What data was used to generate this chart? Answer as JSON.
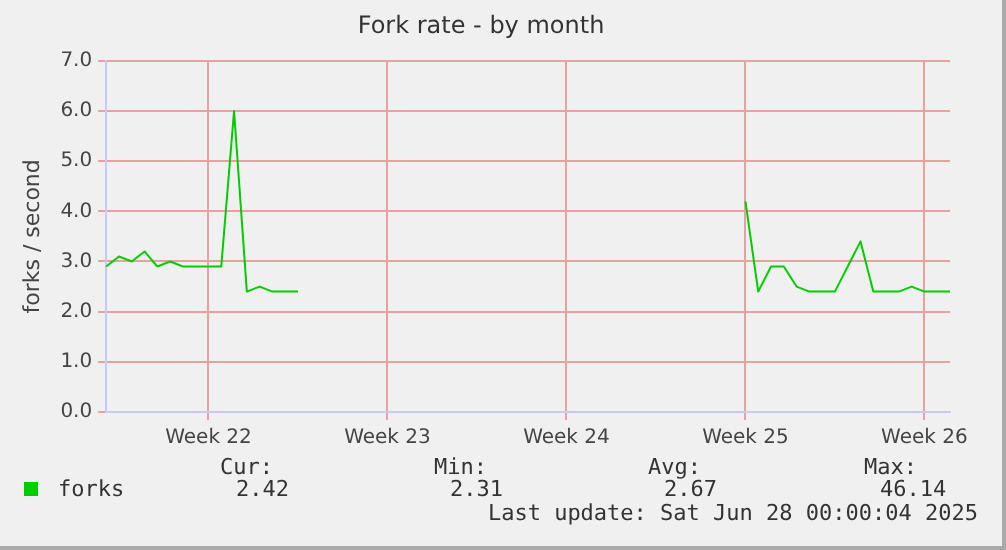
{
  "chart_data": {
    "type": "line",
    "title": "Fork rate - by month",
    "ylabel": "forks / second",
    "categories": [
      null,
      null,
      null,
      null,
      null,
      null,
      null,
      null,
      "Week 22",
      null,
      null,
      null,
      null,
      null,
      null,
      null,
      null,
      null,
      null,
      null,
      null,
      null,
      "Week 23",
      null,
      null,
      null,
      null,
      null,
      null,
      null,
      null,
      null,
      null,
      null,
      null,
      null,
      "Week 24",
      null,
      null,
      null,
      null,
      null,
      null,
      null,
      null,
      null,
      null,
      null,
      null,
      null,
      "Week 25",
      null,
      null,
      null,
      null,
      null,
      null,
      null,
      null,
      null,
      null,
      null,
      null,
      null,
      "Week 26",
      null,
      null
    ],
    "ylim": [
      0,
      7
    ],
    "yticks": [
      {
        "value": 0,
        "label": "0.0"
      },
      {
        "value": 1,
        "label": "1.0"
      },
      {
        "value": 2,
        "label": "2.0"
      },
      {
        "value": 3,
        "label": "3.0"
      },
      {
        "value": 4,
        "label": "4.0"
      },
      {
        "value": 5,
        "label": "5.0"
      },
      {
        "value": 6,
        "label": "6.0"
      },
      {
        "value": 7,
        "label": "7.0"
      }
    ],
    "grid": true,
    "legend": "bottom",
    "marker": "none",
    "line_style": "solid",
    "annotations": [
      "Cur:",
      "Min:",
      "Avg:",
      "Max:",
      "2.42",
      "2.31",
      "2.67",
      "46.14",
      "Last update: Sat Jun 28 00:00:04 2025"
    ],
    "series": [
      {
        "name": "forks",
        "color": "#00cc00",
        "values": [
          2.9,
          3.1,
          3.0,
          3.2,
          2.9,
          3.0,
          2.9,
          2.9,
          2.9,
          2.9,
          6.0,
          2.4,
          2.5,
          2.4,
          2.4,
          2.4,
          null,
          null,
          null,
          null,
          null,
          null,
          null,
          null,
          null,
          null,
          null,
          null,
          null,
          null,
          null,
          null,
          null,
          null,
          null,
          null,
          null,
          null,
          null,
          null,
          null,
          null,
          null,
          null,
          null,
          null,
          null,
          null,
          null,
          null,
          4.2,
          2.4,
          2.9,
          2.9,
          2.5,
          2.4,
          2.4,
          2.4,
          2.9,
          3.4,
          2.4,
          2.4,
          2.4,
          2.5,
          2.4,
          2.4,
          2.4
        ]
      }
    ]
  }
}
